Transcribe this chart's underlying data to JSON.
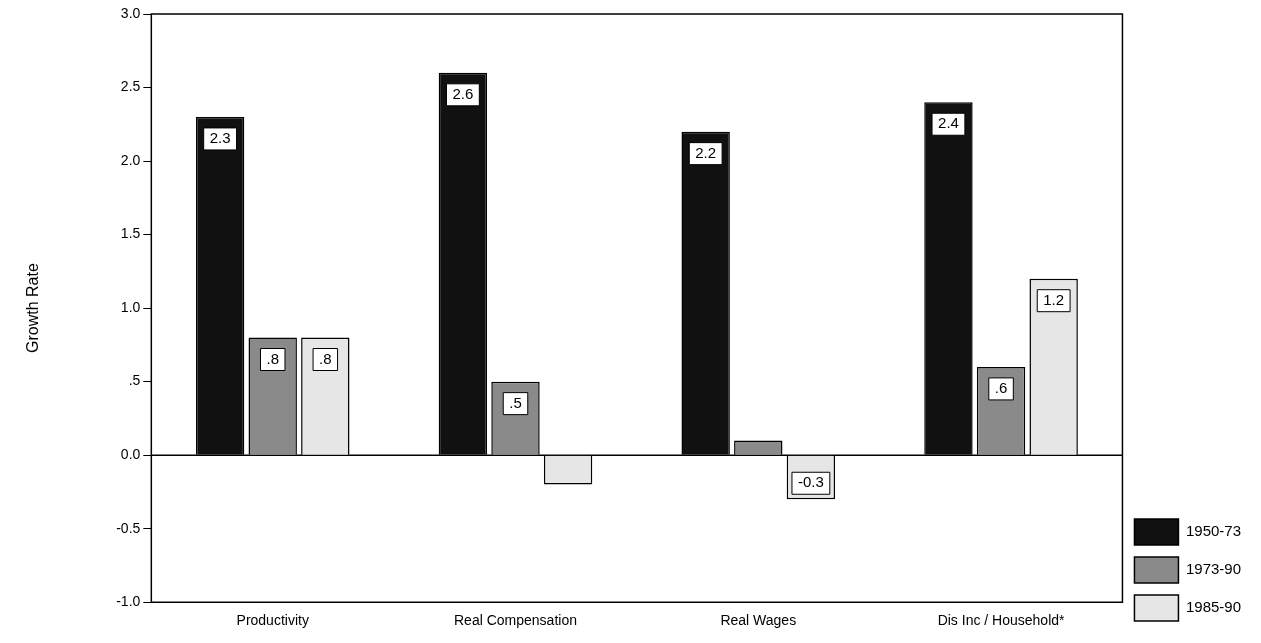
{
  "chart_data": {
    "type": "bar",
    "ylabel": "Growth Rate",
    "categories": [
      "Productivity",
      "Real Compensation",
      "Real Wages",
      "Dis Inc / Household*"
    ],
    "series": [
      {
        "name": "1950-73",
        "color": "#111111",
        "values": [
          2.3,
          2.6,
          2.2,
          2.4
        ],
        "value_labels": [
          "2.3",
          "2.6",
          "2.2",
          "2.4"
        ]
      },
      {
        "name": "1973-90",
        "color": "#8a8a8a",
        "values": [
          0.8,
          0.5,
          0.1,
          0.6
        ],
        "value_labels": [
          ".8",
          ".5",
          null,
          ".6"
        ]
      },
      {
        "name": "1985-90",
        "color": "#e6e6e6",
        "values": [
          0.8,
          -0.2,
          -0.3,
          1.2
        ],
        "value_labels": [
          ".8",
          null,
          "-0.3",
          "1.2"
        ]
      }
    ],
    "ylim": [
      -1,
      3
    ],
    "yticks": [
      {
        "value": -1,
        "label": "-1.0"
      },
      {
        "value": -0.5,
        "label": "-0.5"
      },
      {
        "value": 0,
        "label": "0.0"
      },
      {
        "value": 0.5,
        "label": ".5"
      },
      {
        "value": 1,
        "label": "1.0"
      },
      {
        "value": 1.5,
        "label": "1.5"
      },
      {
        "value": 2,
        "label": "2.0"
      },
      {
        "value": 2.5,
        "label": "2.5"
      },
      {
        "value": 3,
        "label": "3.0"
      }
    ],
    "ref_lines": [
      {
        "axis": "y",
        "value": 0,
        "color": "#000000"
      }
    ],
    "grid": false,
    "legend": "bottom right"
  }
}
